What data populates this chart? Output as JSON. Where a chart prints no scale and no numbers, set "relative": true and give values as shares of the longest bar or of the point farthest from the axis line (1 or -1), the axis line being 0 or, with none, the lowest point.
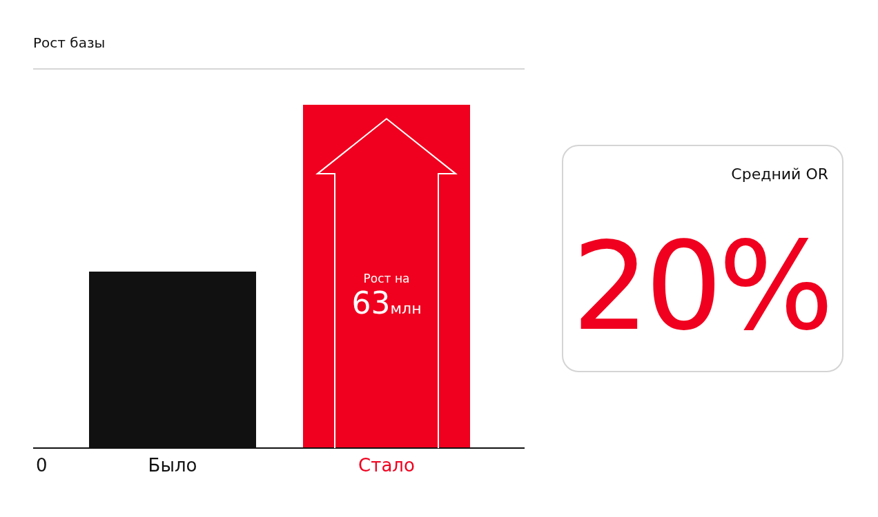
{
  "chart_data": [
    {
      "type": "bar",
      "title": "Рост базы",
      "categories": [
        "Было",
        "Стало"
      ],
      "values": [
        0.514,
        1
      ],
      "colors": [
        "#111111",
        "#f0001e"
      ],
      "relative": true,
      "annotations": [
        "Рост на 63млн",
        "0"
      ]
    },
    {
      "type": "other",
      "title": "Средний OR",
      "annotations": [
        "20%"
      ]
    }
  ]
}
